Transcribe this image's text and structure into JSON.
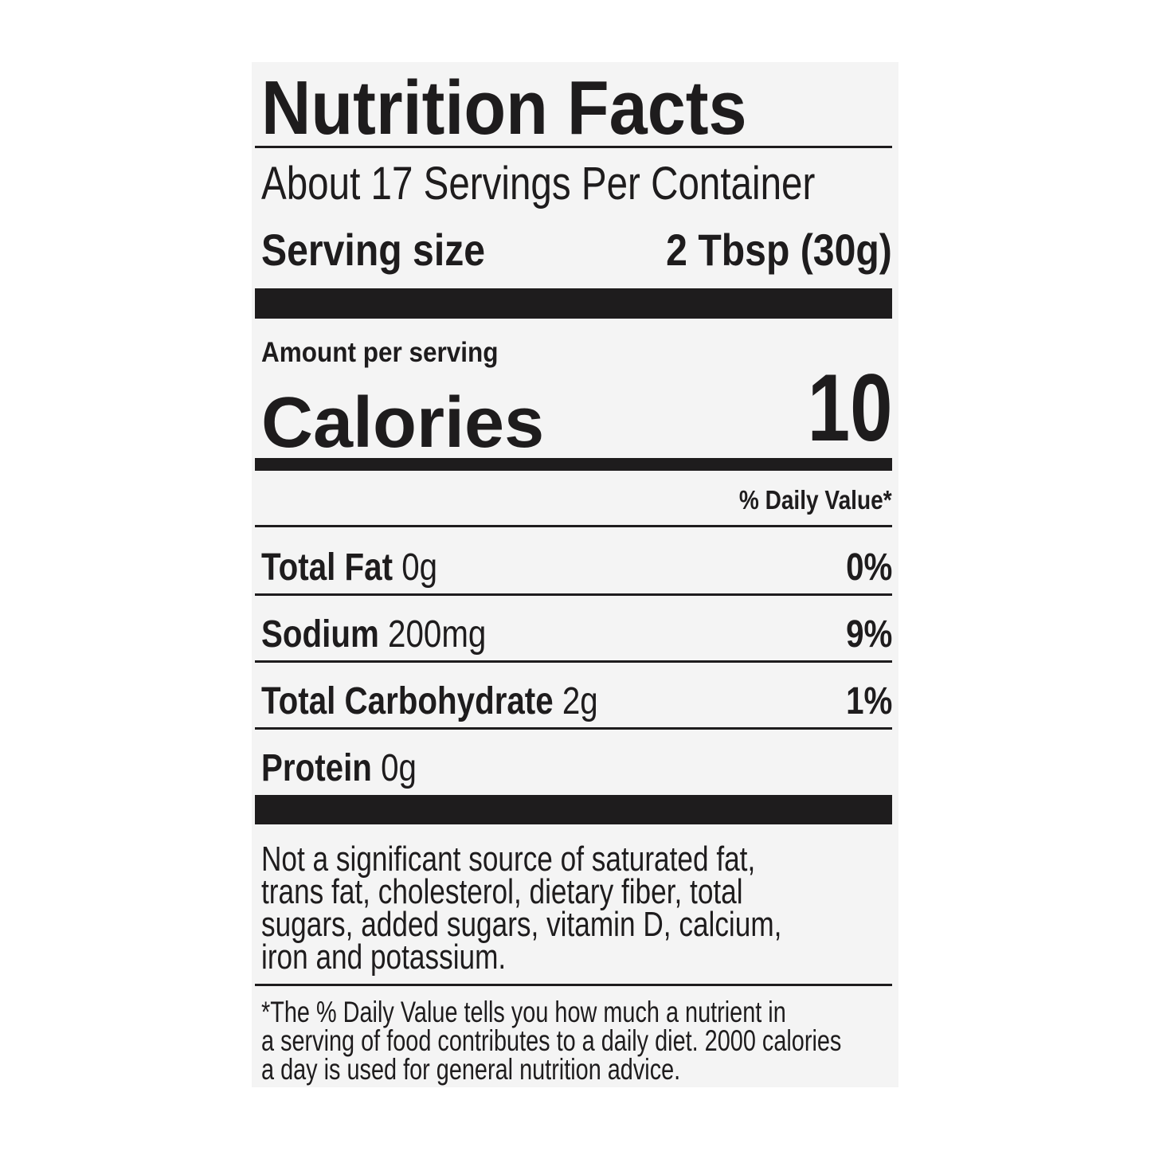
{
  "label": {
    "title": "Nutrition Facts",
    "servings_per_container": "About 17 Servings Per Container",
    "serving_size_label": "Serving size",
    "serving_size_value": "2 Tbsp (30g)",
    "amount_per_serving": "Amount per serving",
    "calories_label": "Calories",
    "calories_value": "10",
    "daily_value_header": "% Daily Value*",
    "nutrients": [
      {
        "name": "Total Fat",
        "amount": "0g",
        "dv": "0%"
      },
      {
        "name": "Sodium",
        "amount": "200mg",
        "dv": "9%"
      },
      {
        "name": "Total Carbohydrate",
        "amount": "2g",
        "dv": "1%"
      },
      {
        "name": "Protein",
        "amount": "0g",
        "dv": ""
      }
    ],
    "not_significant": [
      "Not a significant source of saturated fat,",
      "trans fat, cholesterol, dietary fiber, total",
      "sugars, added sugars, vitamin D, calcium,",
      "iron and potassium."
    ],
    "footnote": [
      "*The % Daily Value tells you how much a nutrient in",
      "a serving of food contributes to a daily diet. 2000 calories",
      "a day is used for general nutrition advice."
    ]
  }
}
